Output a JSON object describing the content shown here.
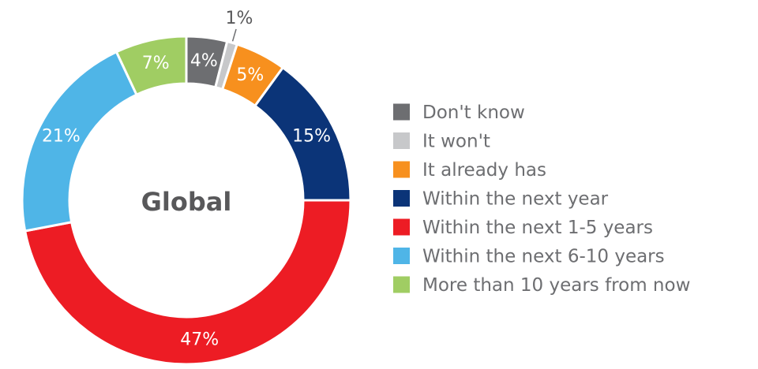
{
  "chart_data": {
    "type": "pie",
    "donut": true,
    "center_label": "Global",
    "slices": [
      {
        "name": "Don't know",
        "value": 4,
        "label": "4%",
        "color": "#6d6e71"
      },
      {
        "name": "It won't",
        "value": 1,
        "label": "1%",
        "color": "#c7c8ca"
      },
      {
        "name": "It already has",
        "value": 5,
        "label": "5%",
        "color": "#f7901e"
      },
      {
        "name": "Within the next year",
        "value": 15,
        "label": "15%",
        "color": "#0b3478"
      },
      {
        "name": "Within the next 1-5 years",
        "value": 47,
        "label": "47%",
        "color": "#ed1c24"
      },
      {
        "name": "Within the next 6-10 years",
        "value": 21,
        "label": "21%",
        "color": "#4fb5e7"
      },
      {
        "name": "More than 10 years from now",
        "value": 7,
        "label": "7%",
        "color": "#a0cd63"
      }
    ],
    "legend_position": "right"
  }
}
